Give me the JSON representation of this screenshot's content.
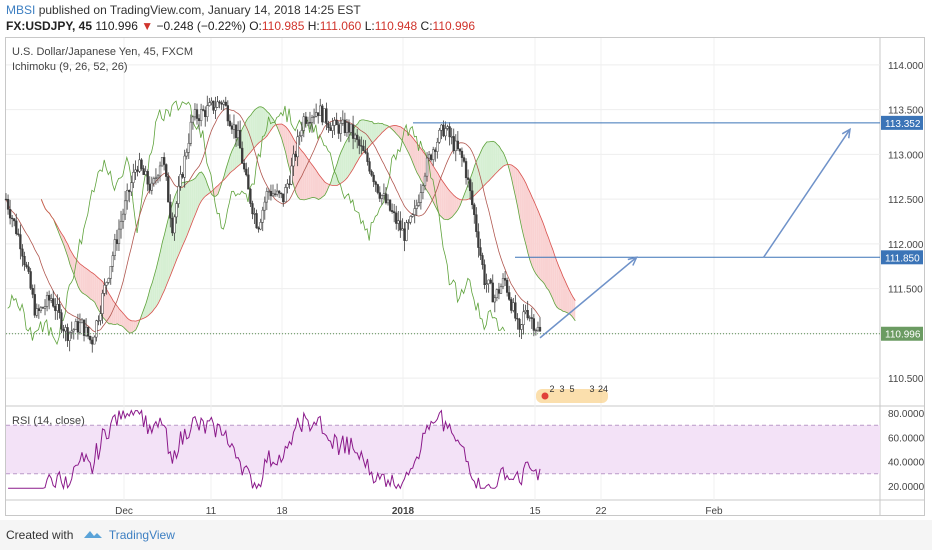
{
  "header": {
    "author": "MBSI",
    "published": "published on TradingView.com, January 14, 2018 14:25 EST",
    "symbol": "FX:USDJPY, 45",
    "last": "110.996",
    "change": "−0.248 (−0.22%)",
    "open_label": "O:",
    "open": "110.985",
    "high_label": "H:",
    "high": "111.060",
    "low_label": "L:",
    "low": "110.948",
    "close_label": "C:",
    "close": "110.996",
    "down_arrow": "▼"
  },
  "legend": {
    "title": "U.S. Dollar/Japanese Yen, 45, FXCM",
    "indicator": "Ichimoku (9, 26, 52, 26)",
    "rsi": "RSI (14, close)"
  },
  "footer": {
    "created": "Created with",
    "brand": "TradingView"
  },
  "colors": {
    "candle": "#3b3b3b",
    "ichimoku_green": "#5fa33c",
    "ichimoku_red": "#d9534f",
    "cloud_green": "#d6efd3",
    "cloud_red": "#f9d2d2",
    "line_blue": "#3b74b7",
    "rsi_line": "#8b1a8b",
    "rsi_band": "#f3e2f7",
    "price_tag": "#3b74b7",
    "last_tag": "#6b9b62"
  },
  "chart_data": [
    {
      "type": "candlestick",
      "title": "U.S. Dollar/Japanese Yen, 45, FXCM",
      "x_tick_labels": [
        "Dec",
        "11",
        "18",
        "2018",
        "15",
        "22",
        "Feb"
      ],
      "y_tick_labels": [
        "110.500",
        "111.000",
        "111.500",
        "112.000",
        "112.500",
        "113.000",
        "113.500",
        "114.000"
      ],
      "ylim": [
        110.2,
        114.3
      ],
      "price_path": [
        {
          "t": 0,
          "p": 112.5
        },
        {
          "t": 3,
          "p": 112.0
        },
        {
          "t": 6,
          "p": 111.2
        },
        {
          "t": 9,
          "p": 111.4
        },
        {
          "t": 12,
          "p": 111.0
        },
        {
          "t": 15,
          "p": 111.1
        },
        {
          "t": 17,
          "p": 110.9
        },
        {
          "t": 20,
          "p": 111.6
        },
        {
          "t": 23,
          "p": 112.3
        },
        {
          "t": 26,
          "p": 112.9
        },
        {
          "t": 29,
          "p": 112.6
        },
        {
          "t": 31,
          "p": 113.0
        },
        {
          "t": 33,
          "p": 112.2
        },
        {
          "t": 35,
          "p": 112.8
        },
        {
          "t": 37,
          "p": 113.4
        },
        {
          "t": 40,
          "p": 113.5
        },
        {
          "t": 43,
          "p": 113.6
        },
        {
          "t": 46,
          "p": 113.2
        },
        {
          "t": 48,
          "p": 112.6
        },
        {
          "t": 50,
          "p": 112.2
        },
        {
          "t": 52,
          "p": 112.6
        },
        {
          "t": 55,
          "p": 112.5
        },
        {
          "t": 57,
          "p": 112.9
        },
        {
          "t": 59,
          "p": 113.4
        },
        {
          "t": 62,
          "p": 113.5
        },
        {
          "t": 65,
          "p": 113.3
        },
        {
          "t": 68,
          "p": 113.3
        },
        {
          "t": 70,
          "p": 113.1
        },
        {
          "t": 72,
          "p": 112.9
        },
        {
          "t": 74,
          "p": 112.6
        },
        {
          "t": 77,
          "p": 112.3
        },
        {
          "t": 79,
          "p": 112.1
        },
        {
          "t": 81,
          "p": 112.3
        },
        {
          "t": 83,
          "p": 112.8
        },
        {
          "t": 85,
          "p": 113.1
        },
        {
          "t": 87,
          "p": 113.3
        },
        {
          "t": 89,
          "p": 113.1
        },
        {
          "t": 91,
          "p": 112.9
        },
        {
          "t": 93,
          "p": 112.3
        },
        {
          "t": 95,
          "p": 111.6
        },
        {
          "t": 97,
          "p": 111.4
        },
        {
          "t": 99,
          "p": 111.6
        },
        {
          "t": 101,
          "p": 111.2
        },
        {
          "t": 102,
          "p": 110.95
        },
        {
          "t": 103,
          "p": 111.3
        },
        {
          "t": 105,
          "p": 111.1
        },
        {
          "t": 106,
          "p": 111.0
        }
      ],
      "horizontal_levels": [
        113.352,
        111.85
      ],
      "price_labels": [
        "113.352",
        "111.850"
      ],
      "last_price_label": "110.996",
      "projection_arrows": [
        {
          "from": [
            106,
            110.95
          ],
          "to": [
            125,
            111.85
          ]
        },
        {
          "from": [
            150,
            111.85
          ],
          "to": [
            167,
            113.28
          ]
        }
      ],
      "event_markers": [
        "2",
        "3",
        "5",
        "3",
        "24"
      ]
    },
    {
      "type": "line",
      "title": "RSI (14, close)",
      "y_tick_labels": [
        "20.0000",
        "40.0000",
        "60.0000",
        "80.0000"
      ],
      "ylim": [
        10,
        85
      ],
      "bands": [
        30,
        70
      ]
    }
  ]
}
